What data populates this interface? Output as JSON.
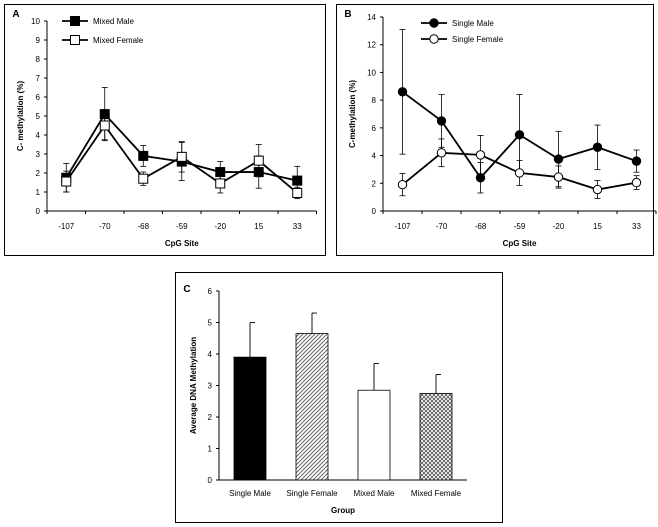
{
  "chart_data": [
    {
      "panel_label": "A",
      "type": "line",
      "title": "",
      "xlabel": "CpG Site",
      "ylabel": "C- methylation  (%)",
      "categories": [
        "-107",
        "-70",
        "-68",
        "-59",
        "-20",
        "15",
        "33"
      ],
      "ylim": [
        0,
        10
      ],
      "yticks": [
        "0",
        "1",
        "2",
        "3",
        "4",
        "5",
        "6",
        "7",
        "8",
        "9",
        "10"
      ],
      "legend_position": "top-left",
      "grid": false,
      "series": [
        {
          "name": "Mixed Male",
          "marker": "filled-square",
          "values": [
            1.75,
            5.1,
            2.9,
            2.6,
            2.05,
            2.05,
            1.6
          ],
          "errors": [
            0.75,
            1.4,
            0.55,
            1.0,
            0.55,
            0.85,
            0.75
          ]
        },
        {
          "name": "Mixed Female",
          "marker": "open-square",
          "values": [
            1.55,
            4.5,
            1.7,
            2.85,
            1.45,
            2.65,
            0.95
          ],
          "errors": [
            0.55,
            0.75,
            0.35,
            0.8,
            0.5,
            0.85,
            0.3
          ]
        }
      ]
    },
    {
      "panel_label": "B",
      "type": "line",
      "title": "",
      "xlabel": "CpG Site",
      "ylabel": "C-methylation  (%)",
      "categories": [
        "-107",
        "-70",
        "-68",
        "-59",
        "-20",
        "15",
        "33"
      ],
      "ylim": [
        0,
        14
      ],
      "yticks": [
        "0",
        "2",
        "4",
        "6",
        "8",
        "10",
        "12",
        "14"
      ],
      "legend_position": "top-right",
      "grid": false,
      "series": [
        {
          "name": "Single Male",
          "marker": "filled-circle",
          "values": [
            8.6,
            6.5,
            2.4,
            5.5,
            3.75,
            4.6,
            3.6
          ],
          "errors": [
            4.5,
            1.9,
            1.1,
            2.9,
            2.0,
            1.6,
            0.8
          ]
        },
        {
          "name": "Single Female",
          "marker": "open-circle",
          "values": [
            1.9,
            4.2,
            4.05,
            2.75,
            2.45,
            1.55,
            2.05
          ],
          "errors": [
            0.8,
            1.0,
            1.4,
            0.9,
            0.8,
            0.65,
            0.5
          ]
        }
      ]
    },
    {
      "panel_label": "C",
      "type": "bar",
      "title": "",
      "xlabel": "Group",
      "ylabel": "Average DNA Methylation",
      "categories": [
        "Single Male",
        "Single Female",
        "Mixed Male",
        "Mixed Female"
      ],
      "values": [
        3.9,
        4.65,
        2.85,
        2.75
      ],
      "errors": [
        1.1,
        0.65,
        0.85,
        0.6
      ],
      "fills": [
        "solid",
        "hatch",
        "empty",
        "crosshatch"
      ],
      "ylim": [
        0,
        6
      ],
      "yticks": [
        "0",
        "1",
        "2",
        "3",
        "4",
        "5",
        "6"
      ],
      "grid": false
    }
  ]
}
